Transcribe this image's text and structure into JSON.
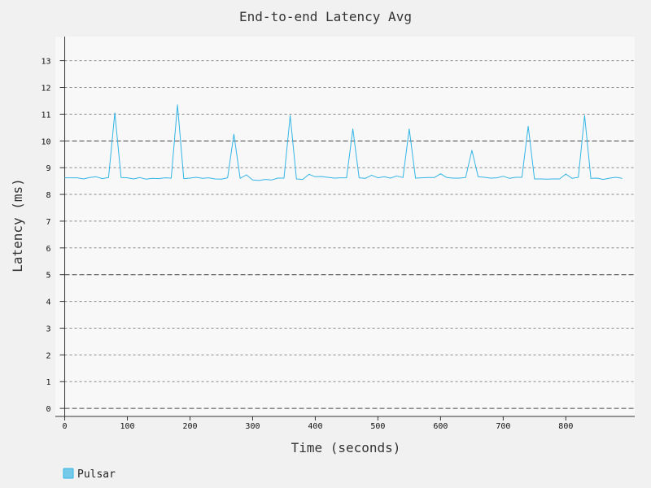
{
  "chart_data": {
    "type": "line",
    "title": "End-to-end Latency Avg",
    "xlabel": "Time (seconds)",
    "ylabel": "Latency (ms)",
    "xlim": [
      -15,
      910
    ],
    "ylim": [
      -0.3,
      13.9
    ],
    "xticks": [
      0,
      100,
      200,
      300,
      400,
      500,
      600,
      700,
      800
    ],
    "yticks": [
      0,
      1,
      2,
      3,
      4,
      5,
      6,
      7,
      8,
      9,
      10,
      11,
      12,
      13
    ],
    "grid": true,
    "legend_position": "bottom-left",
    "series": [
      {
        "name": "Pulsar",
        "color": "#33b5e5",
        "x": [
          0,
          10,
          20,
          30,
          40,
          50,
          60,
          70,
          80,
          90,
          100,
          110,
          120,
          130,
          140,
          150,
          160,
          170,
          180,
          190,
          200,
          210,
          220,
          230,
          240,
          250,
          260,
          270,
          280,
          290,
          300,
          310,
          320,
          330,
          340,
          350,
          360,
          370,
          380,
          390,
          400,
          410,
          420,
          430,
          440,
          450,
          460,
          470,
          480,
          490,
          500,
          510,
          520,
          530,
          540,
          550,
          560,
          570,
          580,
          590,
          600,
          610,
          620,
          630,
          640,
          650,
          660,
          670,
          680,
          690,
          700,
          710,
          720,
          730,
          740,
          750,
          760,
          770,
          780,
          790,
          800,
          810,
          820,
          830,
          840,
          850,
          860,
          870,
          880,
          890
        ],
        "y": [
          8.62,
          8.62,
          8.62,
          8.58,
          8.63,
          8.66,
          8.59,
          8.63,
          11.05,
          8.63,
          8.62,
          8.58,
          8.63,
          8.57,
          8.6,
          8.59,
          8.62,
          8.61,
          11.35,
          8.59,
          8.61,
          8.64,
          8.6,
          8.62,
          8.58,
          8.57,
          8.62,
          10.25,
          8.6,
          8.73,
          8.54,
          8.52,
          8.56,
          8.54,
          8.61,
          8.61,
          10.95,
          8.58,
          8.56,
          8.75,
          8.66,
          8.67,
          8.64,
          8.61,
          8.62,
          8.62,
          10.45,
          8.62,
          8.6,
          8.72,
          8.62,
          8.66,
          8.61,
          8.69,
          8.63,
          10.45,
          8.61,
          8.62,
          8.63,
          8.63,
          8.77,
          8.63,
          8.61,
          8.61,
          8.63,
          9.65,
          8.66,
          8.64,
          8.61,
          8.62,
          8.68,
          8.6,
          8.64,
          8.64,
          10.55,
          8.58,
          8.58,
          8.57,
          8.58,
          8.58,
          8.76,
          8.6,
          8.64,
          10.95,
          8.6,
          8.61,
          8.56,
          8.61,
          8.64,
          8.6
        ]
      }
    ]
  }
}
